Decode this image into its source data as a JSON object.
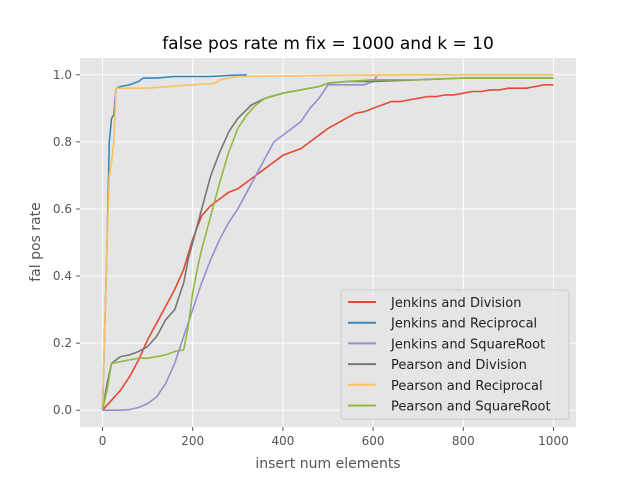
{
  "chart_data": {
    "type": "line",
    "title": "false pos rate m fix = 1000 and k = 10",
    "xlabel": "insert num elements",
    "ylabel": "fal pos rate",
    "xlim": [
      -50,
      1050
    ],
    "ylim": [
      -0.05,
      1.05
    ],
    "xticks": [
      0,
      200,
      400,
      600,
      800,
      1000
    ],
    "yticks": [
      0.0,
      0.2,
      0.4,
      0.6,
      0.8,
      1.0
    ],
    "xtick_labels": [
      "0",
      "200",
      "400",
      "600",
      "800",
      "1000"
    ],
    "ytick_labels": [
      "0.0",
      "0.2",
      "0.4",
      "0.6",
      "0.8",
      "1.0"
    ],
    "grid": true,
    "legend_position": "lower-right",
    "series": [
      {
        "name": "Jenkins and Division",
        "color": "#e24a33",
        "x": [
          0,
          20,
          40,
          60,
          80,
          100,
          120,
          140,
          160,
          180,
          200,
          220,
          240,
          260,
          280,
          300,
          320,
          340,
          360,
          380,
          400,
          420,
          440,
          460,
          480,
          500,
          520,
          540,
          560,
          580,
          600,
          620,
          640,
          660,
          680,
          700,
          720,
          740,
          760,
          780,
          800,
          820,
          840,
          860,
          880,
          900,
          920,
          940,
          960,
          980,
          1000
        ],
        "y": [
          0.0,
          0.03,
          0.06,
          0.1,
          0.15,
          0.21,
          0.26,
          0.31,
          0.36,
          0.42,
          0.51,
          0.58,
          0.61,
          0.63,
          0.65,
          0.66,
          0.68,
          0.7,
          0.72,
          0.74,
          0.76,
          0.77,
          0.78,
          0.8,
          0.82,
          0.84,
          0.855,
          0.87,
          0.885,
          0.89,
          0.9,
          0.91,
          0.92,
          0.92,
          0.925,
          0.93,
          0.935,
          0.935,
          0.94,
          0.94,
          0.945,
          0.95,
          0.95,
          0.955,
          0.955,
          0.96,
          0.96,
          0.96,
          0.965,
          0.97,
          0.97
        ]
      },
      {
        "name": "Jenkins and Reciprocal",
        "color": "#348abd",
        "x": [
          0,
          5,
          10,
          15,
          20,
          25,
          30,
          40,
          60,
          80,
          90,
          120,
          160,
          200,
          240,
          280,
          320
        ],
        "y": [
          0.0,
          0.25,
          0.5,
          0.8,
          0.87,
          0.88,
          0.96,
          0.965,
          0.97,
          0.98,
          0.99,
          0.99,
          0.995,
          0.995,
          0.995,
          0.998,
          1.0
        ]
      },
      {
        "name": "Jenkins and SquareRoot",
        "color": "#988ed5",
        "x": [
          0,
          20,
          40,
          60,
          80,
          100,
          120,
          140,
          160,
          180,
          200,
          220,
          240,
          260,
          280,
          300,
          320,
          340,
          360,
          380,
          400,
          420,
          440,
          460,
          480,
          500,
          520,
          540,
          560,
          580,
          600,
          610
        ],
        "y": [
          0.0,
          0.0,
          0.0,
          0.002,
          0.008,
          0.02,
          0.04,
          0.08,
          0.14,
          0.22,
          0.3,
          0.38,
          0.45,
          0.51,
          0.56,
          0.6,
          0.65,
          0.7,
          0.75,
          0.8,
          0.82,
          0.84,
          0.86,
          0.9,
          0.93,
          0.97,
          0.97,
          0.97,
          0.97,
          0.97,
          0.98,
          1.0
        ]
      },
      {
        "name": "Pearson and Division",
        "color": "#777777",
        "x": [
          0,
          10,
          20,
          30,
          40,
          60,
          80,
          100,
          120,
          140,
          160,
          180,
          190,
          200,
          220,
          240,
          260,
          280,
          300,
          330,
          360,
          400,
          440,
          480,
          500,
          540,
          600,
          700,
          800,
          1000
        ],
        "y": [
          0.0,
          0.08,
          0.14,
          0.15,
          0.16,
          0.165,
          0.175,
          0.19,
          0.22,
          0.27,
          0.3,
          0.38,
          0.45,
          0.5,
          0.6,
          0.7,
          0.77,
          0.83,
          0.87,
          0.91,
          0.93,
          0.945,
          0.955,
          0.965,
          0.975,
          0.98,
          0.98,
          0.985,
          0.99,
          0.99
        ]
      },
      {
        "name": "Pearson and Reciprocal",
        "color": "#fbc15e",
        "x": [
          0,
          5,
          10,
          15,
          20,
          25,
          30,
          40,
          100,
          150,
          200,
          250,
          260,
          280,
          300,
          500,
          700,
          1000
        ],
        "y": [
          0.0,
          0.25,
          0.5,
          0.7,
          0.74,
          0.8,
          0.96,
          0.96,
          0.96,
          0.965,
          0.97,
          0.975,
          0.985,
          0.99,
          0.995,
          0.998,
          1.0,
          1.0
        ]
      },
      {
        "name": "Pearson and SquareRoot",
        "color": "#8eba42",
        "x": [
          0,
          10,
          20,
          40,
          60,
          80,
          100,
          120,
          140,
          160,
          180,
          190,
          200,
          210,
          220,
          240,
          260,
          280,
          300,
          320,
          340,
          360,
          400,
          440,
          480,
          500,
          540,
          600,
          700,
          800,
          1000
        ],
        "y": [
          0.0,
          0.06,
          0.14,
          0.145,
          0.15,
          0.155,
          0.155,
          0.16,
          0.165,
          0.175,
          0.18,
          0.25,
          0.35,
          0.42,
          0.48,
          0.58,
          0.68,
          0.77,
          0.84,
          0.88,
          0.91,
          0.93,
          0.945,
          0.955,
          0.965,
          0.975,
          0.98,
          0.985,
          0.985,
          0.99,
          0.99
        ]
      }
    ]
  }
}
